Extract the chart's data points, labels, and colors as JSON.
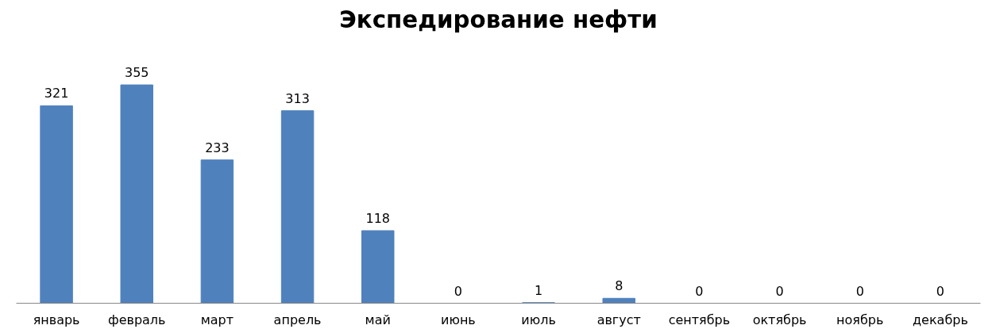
{
  "chart_data": {
    "type": "bar",
    "title": "Экспедирование нефти",
    "categories": [
      "январь",
      "февраль",
      "март",
      "апрель",
      "май",
      "июнь",
      "июль",
      "август",
      "сентябрь",
      "октябрь",
      "ноябрь",
      "декабрь"
    ],
    "series": [
      {
        "color": "#4f81bd",
        "values": [
          321,
          355,
          233,
          313,
          118,
          0,
          1,
          8,
          0,
          0,
          0,
          0
        ]
      }
    ],
    "data_labels": true
  }
}
